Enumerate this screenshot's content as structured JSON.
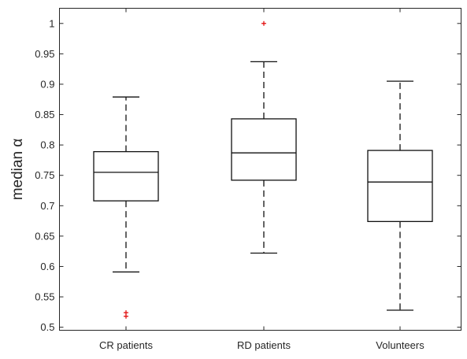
{
  "chart_data": {
    "type": "box",
    "ylabel": "median α",
    "ylim": [
      0.495,
      1.025
    ],
    "yticks": [
      "0.5",
      "0.55",
      "0.6",
      "0.65",
      "0.7",
      "0.75",
      "0.8",
      "0.85",
      "0.9",
      "0.95",
      "1"
    ],
    "categories": [
      "CR patients",
      "RD patients",
      "Volunteers"
    ],
    "boxes": [
      {
        "category": "CR patients",
        "whisker_low": 0.591,
        "q1": 0.708,
        "median": 0.755,
        "q3": 0.789,
        "whisker_high": 0.879,
        "outliers": [
          0.518,
          0.524
        ]
      },
      {
        "category": "RD patients",
        "whisker_low": 0.622,
        "q1": 0.742,
        "median": 0.787,
        "q3": 0.843,
        "whisker_high": 0.937,
        "outliers": [
          1.0
        ]
      },
      {
        "category": "Volunteers",
        "whisker_low": 0.528,
        "q1": 0.674,
        "median": 0.739,
        "q3": 0.791,
        "whisker_high": 0.905,
        "outliers": []
      }
    ],
    "colors": {
      "box": "#111111",
      "outlier": "#e00000",
      "axis": "#262626"
    },
    "grid": false
  }
}
